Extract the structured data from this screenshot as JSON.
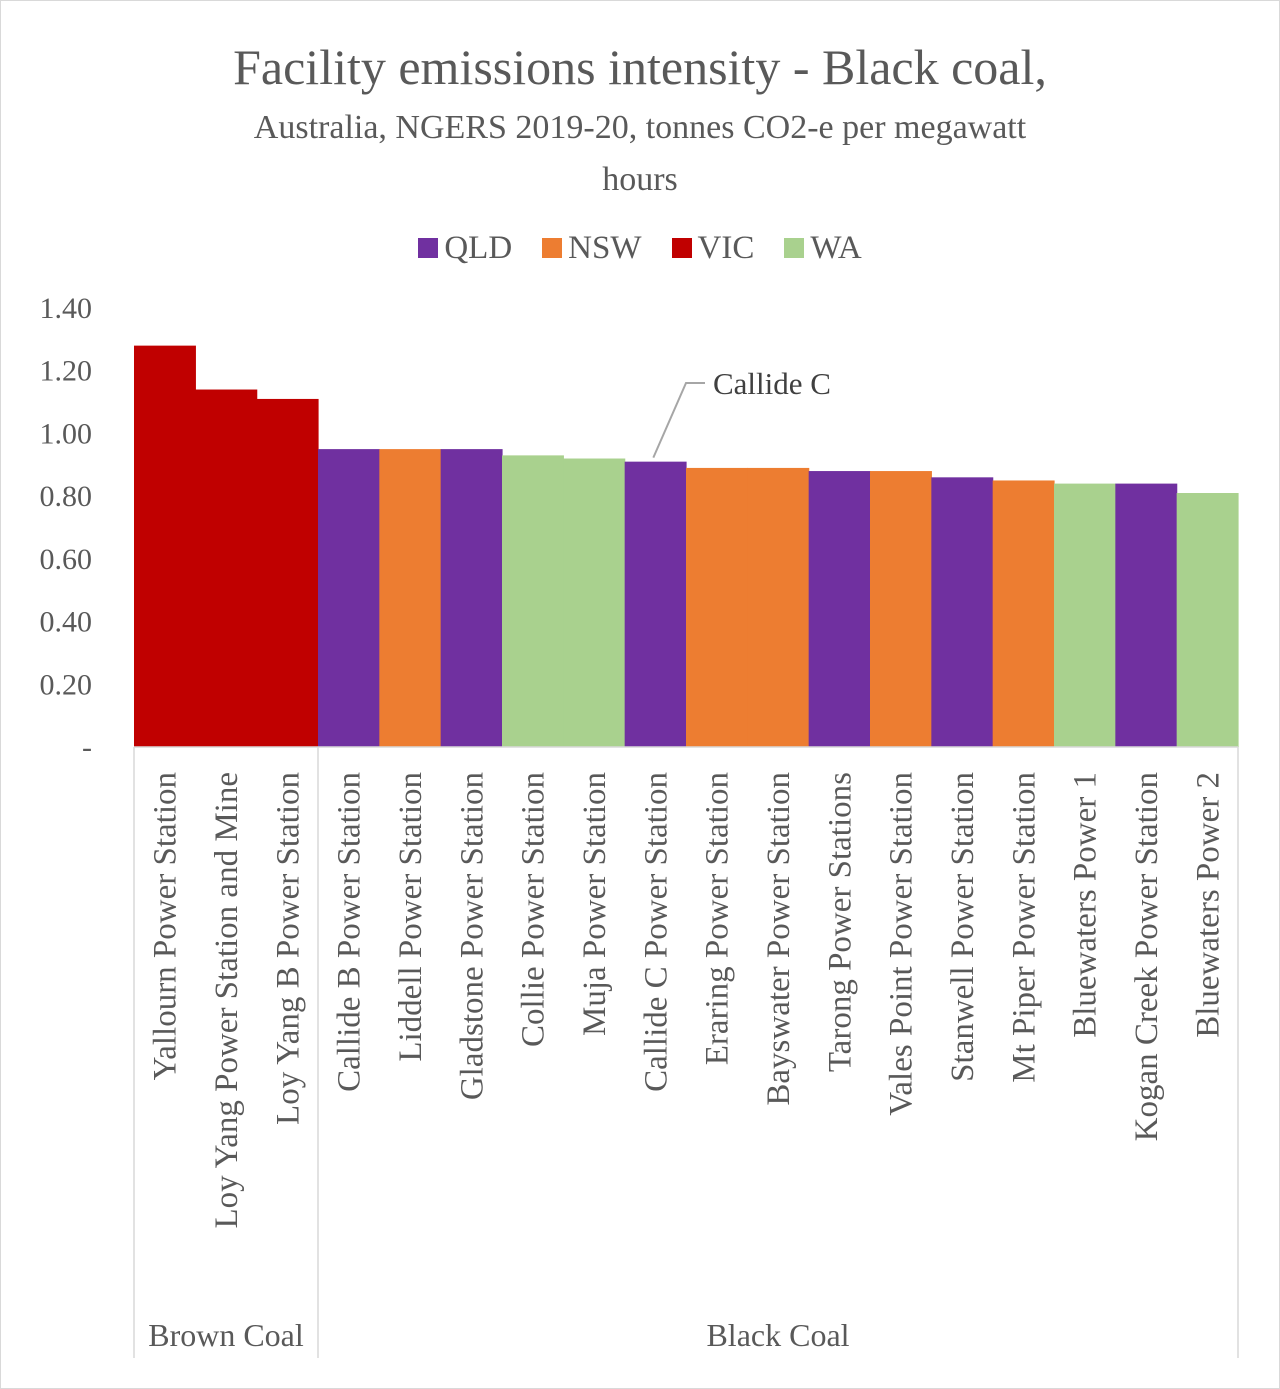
{
  "chart_data": {
    "type": "bar",
    "title": "Facility emissions intensity - Black coal,",
    "subtitle_line1": "Australia, NGERS 2019-20, tonnes CO2-e per megawatt",
    "subtitle_line2": "hours",
    "xlabel": "",
    "ylabel": "",
    "ylim": [
      0,
      1.4
    ],
    "yticks": [
      {
        "value": 0,
        "label": "-"
      },
      {
        "value": 0.2,
        "label": "0.20"
      },
      {
        "value": 0.4,
        "label": "0.40"
      },
      {
        "value": 0.6,
        "label": "0.60"
      },
      {
        "value": 0.8,
        "label": "0.80"
      },
      {
        "value": 1.0,
        "label": "1.00"
      },
      {
        "value": 1.2,
        "label": "1.20"
      },
      {
        "value": 1.4,
        "label": "1.40"
      }
    ],
    "grid": false,
    "legend_position": "top",
    "legend": [
      {
        "name": "QLD",
        "color": "#7030a0"
      },
      {
        "name": "NSW",
        "color": "#ed7d31"
      },
      {
        "name": "VIC",
        "color": "#c00000"
      },
      {
        "name": "WA",
        "color": "#a9d18e"
      }
    ],
    "groups": [
      {
        "name": "Brown Coal",
        "count": 3
      },
      {
        "name": "Black Coal",
        "count": 15
      }
    ],
    "bars": [
      {
        "label": "Yallourn Power Station",
        "state": "VIC",
        "value": 1.28
      },
      {
        "label": "Loy Yang Power Station and Mine",
        "state": "VIC",
        "value": 1.14
      },
      {
        "label": "Loy Yang B Power Station",
        "state": "VIC",
        "value": 1.11
      },
      {
        "label": "Callide B Power Station",
        "state": "QLD",
        "value": 0.95
      },
      {
        "label": "Liddell Power Station",
        "state": "NSW",
        "value": 0.95
      },
      {
        "label": "Gladstone Power Station",
        "state": "QLD",
        "value": 0.95
      },
      {
        "label": "Collie Power Station",
        "state": "WA",
        "value": 0.93
      },
      {
        "label": "Muja Power Station",
        "state": "WA",
        "value": 0.92
      },
      {
        "label": "Callide C Power Station",
        "state": "QLD",
        "value": 0.91
      },
      {
        "label": "Eraring Power Station",
        "state": "NSW",
        "value": 0.89
      },
      {
        "label": "Bayswater Power Station",
        "state": "NSW",
        "value": 0.89
      },
      {
        "label": "Tarong Power Stations",
        "state": "QLD",
        "value": 0.88
      },
      {
        "label": "Vales Point Power Station",
        "state": "NSW",
        "value": 0.88
      },
      {
        "label": "Stanwell Power Station",
        "state": "QLD",
        "value": 0.86
      },
      {
        "label": "Mt Piper Power Station",
        "state": "NSW",
        "value": 0.85
      },
      {
        "label": "Bluewaters Power 1",
        "state": "WA",
        "value": 0.84
      },
      {
        "label": "Kogan Creek Power Station",
        "state": "QLD",
        "value": 0.84
      },
      {
        "label": "Bluewaters Power 2",
        "state": "WA",
        "value": 0.81
      }
    ],
    "annotation": {
      "text": "Callide C",
      "bar_label": "Callide C Power Station"
    }
  }
}
